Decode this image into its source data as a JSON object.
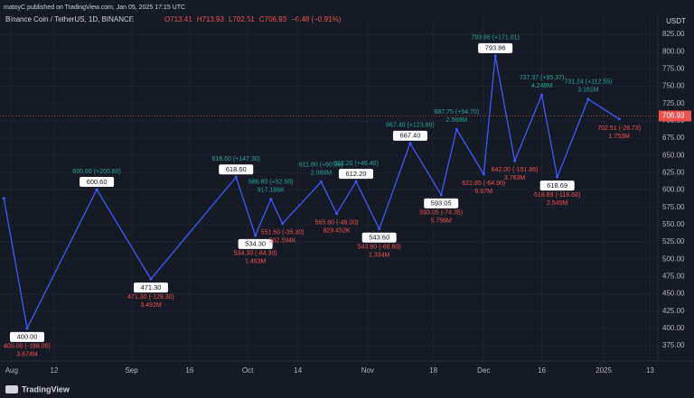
{
  "header": {
    "published": "matoyC published on TradingView.com, Jan 05, 2025 17:15 UTC",
    "symbol": "Binance Coin / TetherUS, 1D, BINANCE",
    "ohlc": [
      "O713.41",
      "H713.93",
      "L702.51",
      "C706.93",
      "−6.48 (−0.91%)"
    ]
  },
  "chart_data": {
    "type": "zigzag",
    "currency": "USDT",
    "color": "#3d5afe",
    "up_color": "#26a69a",
    "down_color": "#ef5350",
    "xlim": [
      "2024-07-29",
      "2025-01-15"
    ],
    "ylim": [
      352.8,
      848.5
    ],
    "yticks": [
      {
        "value": 375,
        "label": "375.00"
      },
      {
        "value": 400,
        "label": "400.00"
      },
      {
        "value": 425,
        "label": "425.00"
      },
      {
        "value": 450,
        "label": "450.00"
      },
      {
        "value": 475,
        "label": "475.00"
      },
      {
        "value": 500,
        "label": "500.00"
      },
      {
        "value": 525,
        "label": "525.00"
      },
      {
        "value": 550,
        "label": "550.00"
      },
      {
        "value": 575,
        "label": "575.00"
      },
      {
        "value": 600,
        "label": "600.00"
      },
      {
        "value": 625,
        "label": "625.00"
      },
      {
        "value": 650,
        "label": "650.00"
      },
      {
        "value": 675,
        "label": "675.00"
      },
      {
        "value": 700,
        "label": "700.00"
      },
      {
        "value": 725,
        "label": "725.00"
      },
      {
        "value": 750,
        "label": "750.00"
      },
      {
        "value": 775,
        "label": "775.00"
      },
      {
        "value": 800,
        "label": "800.00"
      },
      {
        "value": 825,
        "label": "825.00"
      }
    ],
    "xticks": [
      {
        "value": "2024-08-01",
        "label": "Aug"
      },
      {
        "value": "2024-08-12",
        "label": "12"
      },
      {
        "value": "2024-09-01",
        "label": "Sep"
      },
      {
        "value": "2024-09-16",
        "label": "16"
      },
      {
        "value": "2024-10-01",
        "label": "Oct"
      },
      {
        "value": "2024-10-14",
        "label": "14"
      },
      {
        "value": "2024-11-01",
        "label": "Nov"
      },
      {
        "value": "2024-11-18",
        "label": "18"
      },
      {
        "value": "2024-12-01",
        "label": "Dec"
      },
      {
        "value": "2024-12-16",
        "label": "16"
      },
      {
        "value": "2025-01-01",
        "label": "2025"
      },
      {
        "value": "2025-01-13",
        "label": "13"
      }
    ],
    "last_price": {
      "value": 706.93,
      "label": "706.93"
    },
    "pivots": [
      {
        "date": "2024-07-30",
        "price": 588
      },
      {
        "date": "2024-08-05",
        "price": 400,
        "box": "400.00",
        "change": "400.00 (-188.00)",
        "volume": "3.674M"
      },
      {
        "date": "2024-08-23",
        "price": 600.6,
        "box": "600.60",
        "change": "600.60 (+200.60)"
      },
      {
        "date": "2024-09-06",
        "price": 471.3,
        "box": "471.30",
        "change": "471.30 (-129.30)",
        "volume": "3.492M"
      },
      {
        "date": "2024-09-28",
        "price": 618.6,
        "box": "618.60",
        "change": "618.60 (+147.30)"
      },
      {
        "date": "2024-10-03",
        "price": 534.3,
        "box": "534.30",
        "change": "534.30 (-84.30)",
        "volume": "1.463M"
      },
      {
        "date": "2024-10-07",
        "price": 586.8,
        "change": "586.80 (+52.50)",
        "volume": "917.186K"
      },
      {
        "date": "2024-10-10",
        "price": 551.5,
        "change": "551.50 (-35.30)",
        "volume": "502.594K"
      },
      {
        "date": "2024-10-20",
        "price": 611.8,
        "change": "611.80 (+60.30)",
        "volume": "2.086M"
      },
      {
        "date": "2024-10-24",
        "price": 565.8,
        "change": "565.80 (-46.00)",
        "volume": "829.452K"
      },
      {
        "date": "2024-10-29",
        "price": 612.2,
        "box": "612.20",
        "change": "612.20 (+46.40)"
      },
      {
        "date": "2024-11-04",
        "price": 543.6,
        "box": "543.60",
        "change": "543.60 (-68.60)",
        "volume": "1.334M"
      },
      {
        "date": "2024-11-12",
        "price": 667.4,
        "box": "667.40",
        "change": "667.40 (+123.80)"
      },
      {
        "date": "2024-11-20",
        "price": 593.05,
        "box": "593.05",
        "change": "593.05 (-74.35)",
        "volume": "5.756M"
      },
      {
        "date": "2024-11-24",
        "price": 687.75,
        "change": "687.75 (+94.70)",
        "volume": "2.568M"
      },
      {
        "date": "2024-12-01",
        "price": 622.85,
        "change": "622.85 (-64.90)",
        "volume": "6.67M"
      },
      {
        "date": "2024-12-04",
        "price": 793.86,
        "box": "793.86",
        "change": "793.86 (+171.01)"
      },
      {
        "date": "2024-12-09",
        "price": 642,
        "change": "642.00 (-151.86)",
        "volume": "3.763M"
      },
      {
        "date": "2024-12-16",
        "price": 737.37,
        "change": "737.37 (+95.37)",
        "volume": "4.248M"
      },
      {
        "date": "2024-12-20",
        "price": 618.69,
        "box": "618.69",
        "change": "618.69 (-118.68)",
        "volume": "2.549M"
      },
      {
        "date": "2024-12-28",
        "price": 731.24,
        "change": "731.24 (+112.55)",
        "volume": "3.161M"
      },
      {
        "date": "2025-01-05",
        "price": 702.51,
        "change": "702.51 (-28.73)",
        "volume": "1.753M"
      }
    ]
  },
  "footer": {
    "brand": "TradingView"
  }
}
